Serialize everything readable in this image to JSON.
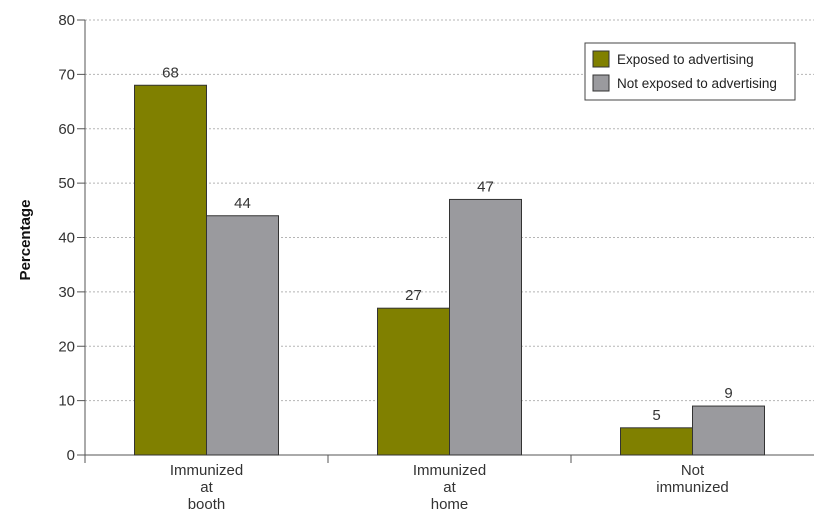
{
  "chart_data": {
    "type": "bar",
    "title": "",
    "xlabel": "",
    "ylabel": "Percentage",
    "ylim": [
      0,
      80
    ],
    "yticks": [
      0,
      10,
      20,
      30,
      40,
      50,
      60,
      70,
      80
    ],
    "grid": true,
    "legend_position": "top-right",
    "categories": [
      [
        "Immunized",
        "at",
        "booth"
      ],
      [
        "Immunized",
        "at",
        "home"
      ],
      [
        "Not",
        "immunized"
      ]
    ],
    "series": [
      {
        "name": "Exposed to advertising",
        "color": "#808000",
        "values": [
          68,
          27,
          5
        ]
      },
      {
        "name": "Not exposed to advertising",
        "color": "#9a9a9e",
        "values": [
          44,
          47,
          9
        ]
      }
    ]
  }
}
